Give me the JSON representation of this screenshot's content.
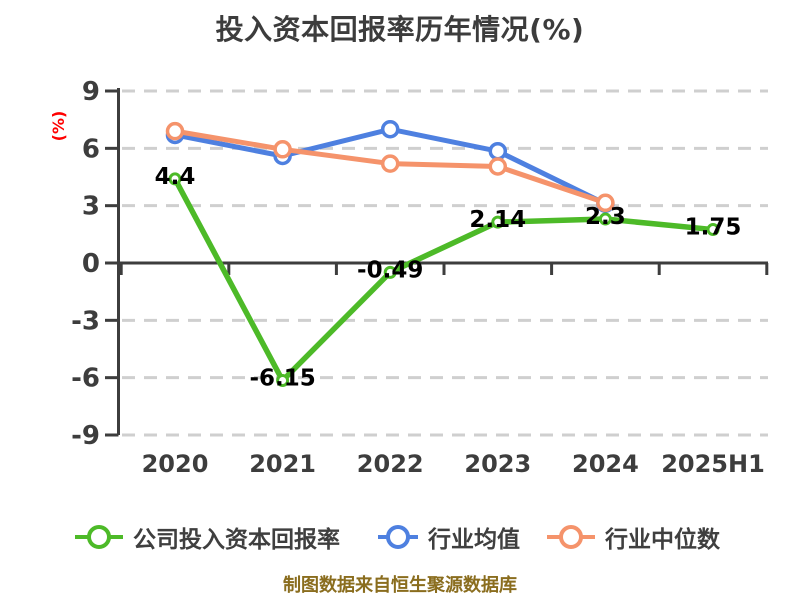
{
  "header": {
    "title": "投入资本回报率历年情况(%)"
  },
  "y_axis_label": "(%)",
  "footer": {
    "credit": "制图数据来自恒生聚源数据库"
  },
  "colors": {
    "title_text": "#3c3c3c",
    "axis": "#3d3d3d",
    "grid": "#cfcfcf",
    "ylabel_red": "#ff0000",
    "data_label": "#000000",
    "tick_label": "#3d3d3d",
    "footer_gold": "#8a6d1e",
    "series_company_green": "#4dba28",
    "series_mean_blue": "#4e80e0",
    "series_median_orange": "#f5936b"
  },
  "chart_data": {
    "type": "line",
    "title": "投入资本回报率历年情况(%)",
    "xlabel": "",
    "ylabel": "(%)",
    "categories": [
      "2020",
      "2021",
      "2022",
      "2023",
      "2024",
      "2025H1"
    ],
    "ylim": [
      -9,
      9
    ],
    "yticks": [
      9,
      6,
      3,
      0,
      -3,
      -6,
      -9
    ],
    "grid": "horizontal-dashed",
    "legend_position": "bottom",
    "series": [
      {
        "name": "公司投入资本回报率",
        "color": "#4dba28",
        "values": [
          4.4,
          -6.15,
          -0.49,
          2.14,
          2.3,
          1.75
        ],
        "point_labels": [
          "4.4",
          "-6.15",
          "-0.49",
          "2.14",
          "2.3",
          "1.75"
        ]
      },
      {
        "name": "行业均值",
        "color": "#4e80e0",
        "values": [
          6.7,
          5.6,
          7.0,
          5.85,
          3.1,
          null
        ],
        "point_labels": null
      },
      {
        "name": "行业中位数",
        "color": "#f5936b",
        "values": [
          6.9,
          5.95,
          5.2,
          5.05,
          3.15,
          null
        ],
        "point_labels": null
      }
    ]
  }
}
